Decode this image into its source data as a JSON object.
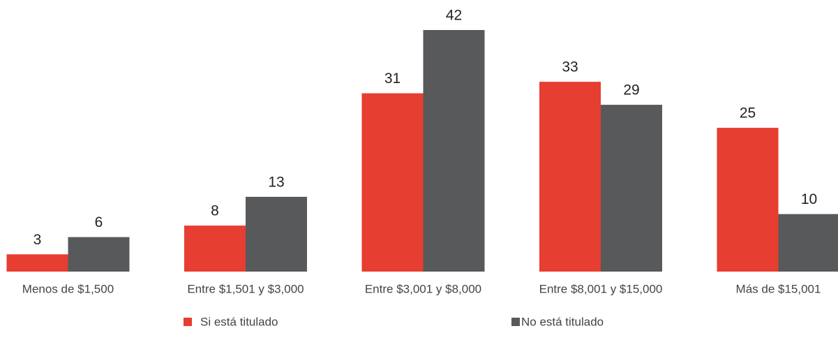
{
  "chart_data": {
    "type": "bar",
    "categories": [
      "Menos de $1,500",
      "Entre $1,501 y $3,000",
      "Entre $3,001 y $8,000",
      "Entre $8,001 y $15,000",
      "Más de $15,001"
    ],
    "series": [
      {
        "name": "Si está titulado",
        "color": "#e63e30",
        "values": [
          3,
          8,
          31,
          33,
          25
        ]
      },
      {
        "name": "No está titulado",
        "color": "#58595b",
        "values": [
          6,
          13,
          42,
          29,
          10
        ]
      }
    ],
    "grid": false
  }
}
